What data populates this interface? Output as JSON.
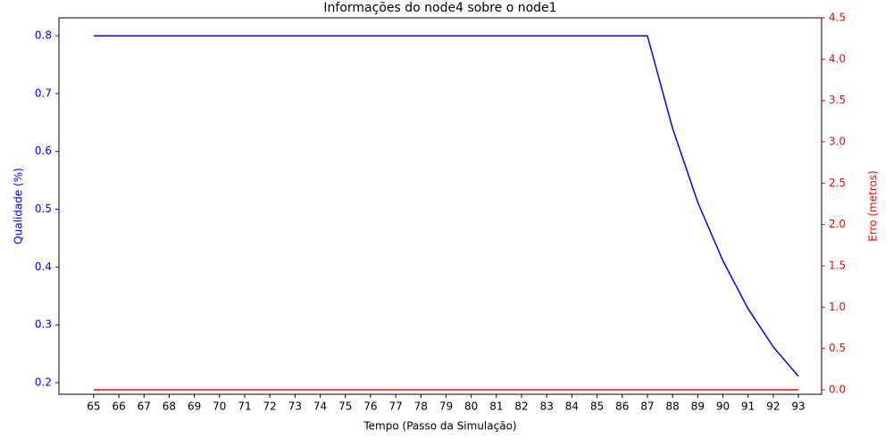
{
  "chart_data": {
    "type": "line",
    "title": "Informações do node4 sobre o node1",
    "x_label": "Tempo (Passo da Simulação)",
    "y_label": "Qualidade (%)",
    "y2_label": "Erro (metros)",
    "x": [
      65,
      66,
      67,
      68,
      69,
      70,
      71,
      72,
      73,
      74,
      75,
      76,
      77,
      78,
      79,
      80,
      81,
      82,
      83,
      84,
      85,
      86,
      87,
      88,
      89,
      90,
      91,
      92,
      93
    ],
    "series": [
      {
        "color": "blue",
        "values": [
          0.8,
          0.8,
          0.8,
          0.8,
          0.8,
          0.8,
          0.8,
          0.8,
          0.8,
          0.8,
          0.8,
          0.8,
          0.8,
          0.8,
          0.8,
          0.8,
          0.8,
          0.8,
          0.8,
          0.8,
          0.8,
          0.8,
          0.8,
          0.64,
          0.512,
          0.411,
          0.328,
          0.262,
          0.211
        ]
      },
      {
        "color": "red",
        "axis": "y2",
        "values": [
          0,
          0,
          0,
          0,
          0,
          0,
          0,
          0,
          0,
          0,
          0,
          0,
          0,
          0,
          0,
          0,
          0,
          0,
          0,
          0,
          0,
          0,
          0,
          0,
          0,
          0,
          0,
          0,
          0
        ]
      }
    ],
    "xlim": [
      63.62,
      93.92
    ],
    "xticks": [
      65,
      66,
      67,
      68,
      69,
      70,
      71,
      72,
      73,
      74,
      75,
      76,
      77,
      78,
      79,
      80,
      81,
      82,
      83,
      84,
      85,
      86,
      87,
      88,
      89,
      90,
      91,
      92,
      93
    ],
    "ylim": [
      0.18,
      0.831
    ],
    "yticks": [
      0.2,
      0.3,
      0.4,
      0.5,
      0.6,
      0.7,
      0.8
    ],
    "y2lim": [
      -0.054,
      4.5
    ],
    "y2ticks": [
      {
        "value": 0,
        "label": "0.0"
      },
      0.5,
      {
        "value": 1,
        "label": "1.0"
      },
      1.5,
      {
        "value": 2,
        "label": "2.0"
      },
      2.5,
      {
        "value": 3,
        "label": "3.0"
      },
      3.5,
      {
        "value": 4,
        "label": "4.0"
      },
      4.5
    ]
  }
}
